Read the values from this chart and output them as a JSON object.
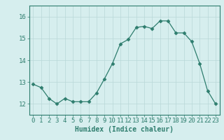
{
  "x": [
    0,
    1,
    2,
    3,
    4,
    5,
    6,
    7,
    8,
    9,
    10,
    11,
    12,
    13,
    14,
    15,
    16,
    17,
    18,
    19,
    20,
    21,
    22,
    23
  ],
  "y": [
    12.9,
    12.75,
    12.25,
    12.0,
    12.25,
    12.1,
    12.1,
    12.1,
    12.5,
    13.15,
    13.85,
    14.75,
    14.95,
    15.5,
    15.55,
    15.45,
    15.8,
    15.8,
    15.25,
    15.25,
    14.85,
    13.85,
    12.6,
    12.0
  ],
  "line_color": "#2e7d6e",
  "marker": "D",
  "marker_size": 2.5,
  "bg_color": "#d6eeee",
  "grid_color": "#b8d8d8",
  "axis_color": "#2e7d6e",
  "xlabel": "Humidex (Indice chaleur)",
  "ylim": [
    11.5,
    16.5
  ],
  "xlim": [
    -0.5,
    23.5
  ],
  "yticks": [
    12,
    13,
    14,
    15,
    16
  ],
  "xticks": [
    0,
    1,
    2,
    3,
    4,
    5,
    6,
    7,
    8,
    9,
    10,
    11,
    12,
    13,
    14,
    15,
    16,
    17,
    18,
    19,
    20,
    21,
    22,
    23
  ],
  "label_fontsize": 7,
  "tick_fontsize": 6.5
}
